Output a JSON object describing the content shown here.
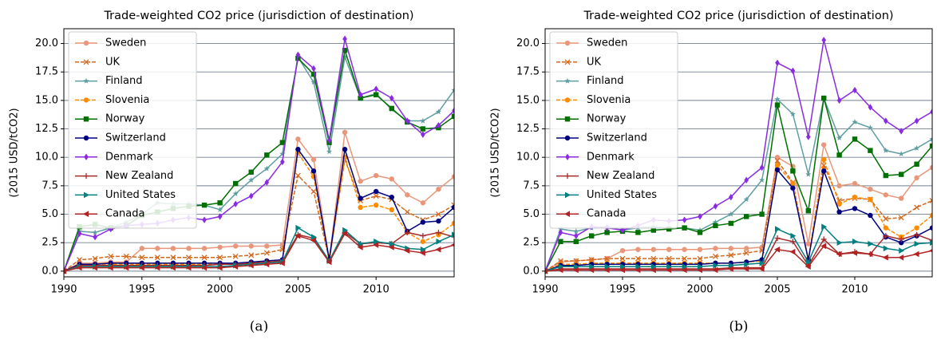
{
  "chart_data": [
    {
      "type": "line",
      "title": "Trade-weighted CO2 price (jurisdiction of destination)",
      "ylabel": "(2015 USD/tCO2)",
      "caption": "(a)",
      "x": [
        1990,
        1991,
        1992,
        1993,
        1994,
        1995,
        1996,
        1997,
        1998,
        1999,
        2000,
        2001,
        2002,
        2003,
        2004,
        2005,
        2006,
        2007,
        2008,
        2009,
        2010,
        2011,
        2012,
        2013,
        2014,
        2015
      ],
      "xlim": [
        1990,
        2015
      ],
      "xticks": [
        1990,
        1995,
        2000,
        2005,
        2010
      ],
      "ylim": [
        -0.5,
        21.3
      ],
      "yticks": [
        {
          "value": 0,
          "label": "0.0"
        },
        {
          "value": 2.5,
          "label": "2.5"
        },
        {
          "value": 5,
          "label": "5.0"
        },
        {
          "value": 7.5,
          "label": "7.5"
        },
        {
          "value": 10,
          "label": "10.0"
        },
        {
          "value": 12.5,
          "label": "12.5"
        },
        {
          "value": 15,
          "label": "15.0"
        },
        {
          "value": 17.5,
          "label": "17.5"
        },
        {
          "value": 20,
          "label": "20.0"
        }
      ],
      "grid": "y",
      "legend": "upper left",
      "series": [
        {
          "name": "Sweden",
          "color": "#e9967a",
          "marker": "o",
          "dashed": false,
          "values": [
            0,
            0.7,
            0.7,
            0.8,
            0.8,
            2.0,
            2.0,
            2.0,
            2.0,
            2.0,
            2.1,
            2.2,
            2.2,
            2.2,
            2.3,
            11.6,
            9.8,
            1.0,
            12.2,
            7.9,
            8.4,
            8.1,
            6.7,
            6.0,
            7.2,
            8.3
          ]
        },
        {
          "name": "UK",
          "color": "#d2691e",
          "marker": "x",
          "dashed": true,
          "values": [
            0,
            1.0,
            1.1,
            1.3,
            1.3,
            1.2,
            1.2,
            1.2,
            1.2,
            1.2,
            1.2,
            1.3,
            1.4,
            1.6,
            1.9,
            8.4,
            7.0,
            1.0,
            9.8,
            6.2,
            6.6,
            6.3,
            5.2,
            4.5,
            5.0,
            5.8
          ]
        },
        {
          "name": "Finland",
          "color": "#5f9ea0",
          "marker": "*",
          "dashed": false,
          "values": [
            0,
            3.5,
            3.4,
            3.8,
            4.3,
            5.0,
            6.0,
            5.9,
            5.9,
            5.8,
            5.4,
            6.8,
            8.0,
            9.0,
            10.3,
            18.8,
            16.6,
            10.5,
            18.8,
            15.2,
            15.6,
            14.2,
            13.2,
            13.2,
            14.0,
            15.9
          ]
        },
        {
          "name": "Slovenia",
          "color": "#ff8c00",
          "marker": "o",
          "dashed": true,
          "values": [
            0,
            0.5,
            0.5,
            0.6,
            0.6,
            0.6,
            0.6,
            0.6,
            0.6,
            0.6,
            0.6,
            0.6,
            0.7,
            0.8,
            0.9,
            10.4,
            8.3,
            0.9,
            10.0,
            5.6,
            5.8,
            5.4,
            3.4,
            2.6,
            3.2,
            4.2
          ]
        },
        {
          "name": "Norway",
          "color": "#007000",
          "marker": "s",
          "dashed": false,
          "values": [
            0,
            3.9,
            4.1,
            3.8,
            4.0,
            4.9,
            5.2,
            5.5,
            5.7,
            5.8,
            6.0,
            7.7,
            8.7,
            10.2,
            11.3,
            18.7,
            17.3,
            11.3,
            19.4,
            15.2,
            15.5,
            14.3,
            13.1,
            12.5,
            12.6,
            13.6
          ]
        },
        {
          "name": "Switzerland",
          "color": "#000080",
          "marker": "o",
          "dashed": false,
          "values": [
            0,
            0.6,
            0.6,
            0.7,
            0.7,
            0.7,
            0.7,
            0.7,
            0.7,
            0.7,
            0.7,
            0.7,
            0.8,
            0.9,
            1.0,
            10.7,
            8.8,
            1.0,
            10.7,
            6.4,
            7.0,
            6.5,
            3.5,
            4.3,
            4.4,
            5.6
          ]
        },
        {
          "name": "Denmark",
          "color": "#8a2be2",
          "marker": "d",
          "dashed": false,
          "values": [
            0,
            3.3,
            3.0,
            3.7,
            4.0,
            4.1,
            4.2,
            4.5,
            4.7,
            4.5,
            4.8,
            5.9,
            6.6,
            7.8,
            9.6,
            19.0,
            17.8,
            11.5,
            20.4,
            15.5,
            16.0,
            15.2,
            13.2,
            12.0,
            12.8,
            14.1
          ]
        },
        {
          "name": "New Zealand",
          "color": "#a52a2a",
          "marker": "+",
          "dashed": false,
          "values": [
            0,
            0.5,
            0.5,
            0.5,
            0.5,
            0.5,
            0.5,
            0.5,
            0.5,
            0.5,
            0.6,
            0.6,
            0.7,
            0.8,
            0.9,
            3.2,
            2.9,
            0.9,
            3.4,
            2.4,
            2.5,
            2.4,
            3.4,
            3.1,
            3.4,
            3.0
          ]
        },
        {
          "name": "United States",
          "color": "#008080",
          "marker": ">",
          "dashed": false,
          "values": [
            0,
            0.4,
            0.4,
            0.4,
            0.4,
            0.4,
            0.4,
            0.4,
            0.4,
            0.4,
            0.4,
            0.5,
            0.6,
            0.7,
            0.8,
            3.8,
            3.0,
            0.9,
            3.6,
            2.4,
            2.6,
            2.4,
            2.0,
            1.9,
            2.6,
            3.2
          ]
        },
        {
          "name": "Canada",
          "color": "#b22222",
          "marker": "<",
          "dashed": false,
          "values": [
            0,
            0.3,
            0.3,
            0.3,
            0.3,
            0.3,
            0.3,
            0.3,
            0.3,
            0.3,
            0.3,
            0.4,
            0.5,
            0.6,
            0.7,
            3.1,
            2.7,
            0.8,
            3.3,
            2.1,
            2.3,
            2.1,
            1.8,
            1.6,
            1.9,
            2.3
          ]
        }
      ]
    },
    {
      "type": "line",
      "title": "Trade-weighted CO2 price (jurisdiction of destination)",
      "ylabel": "(2015 USD/tCO2)",
      "caption": "(b)",
      "x": [
        1990,
        1991,
        1992,
        1993,
        1994,
        1995,
        1996,
        1997,
        1998,
        1999,
        2000,
        2001,
        2002,
        2003,
        2004,
        2005,
        2006,
        2007,
        2008,
        2009,
        2010,
        2011,
        2012,
        2013,
        2014,
        2015
      ],
      "xlim": [
        1990,
        2015
      ],
      "xticks": [
        1990,
        1995,
        2000,
        2005,
        2010
      ],
      "ylim": [
        -0.5,
        21.3
      ],
      "yticks": [
        {
          "value": 0,
          "label": "0.0"
        },
        {
          "value": 2.5,
          "label": "2.5"
        },
        {
          "value": 5,
          "label": "5.0"
        },
        {
          "value": 7.5,
          "label": "7.5"
        },
        {
          "value": 10,
          "label": "10.0"
        },
        {
          "value": 12.5,
          "label": "12.5"
        },
        {
          "value": 15,
          "label": "15.0"
        },
        {
          "value": 17.5,
          "label": "17.5"
        },
        {
          "value": 20,
          "label": "20.0"
        }
      ],
      "grid": "y",
      "legend": "upper left",
      "series": [
        {
          "name": "Sweden",
          "color": "#e9967a",
          "marker": "o",
          "dashed": false,
          "values": [
            0,
            0.8,
            0.9,
            1.0,
            1.1,
            1.8,
            1.9,
            1.9,
            1.9,
            1.9,
            1.9,
            2.0,
            2.0,
            2.0,
            2.1,
            10.0,
            9.2,
            2.4,
            11.1,
            7.5,
            7.7,
            7.2,
            6.7,
            6.4,
            8.2,
            9.1
          ]
        },
        {
          "name": "UK",
          "color": "#d2691e",
          "marker": "x",
          "dashed": true,
          "values": [
            0,
            0.9,
            0.9,
            1.0,
            1.1,
            1.1,
            1.1,
            1.1,
            1.1,
            1.1,
            1.1,
            1.3,
            1.4,
            1.6,
            1.8,
            9.7,
            7.8,
            1.0,
            9.3,
            6.2,
            6.4,
            6.3,
            4.6,
            4.7,
            5.6,
            6.2
          ]
        },
        {
          "name": "Finland",
          "color": "#5f9ea0",
          "marker": "*",
          "dashed": false,
          "values": [
            0,
            3.7,
            3.5,
            3.8,
            3.9,
            3.6,
            3.8,
            3.9,
            3.8,
            3.8,
            3.6,
            4.3,
            5.0,
            6.3,
            8.0,
            15.1,
            13.8,
            8.5,
            15.2,
            11.7,
            13.1,
            12.6,
            10.6,
            10.3,
            10.8,
            11.6
          ]
        },
        {
          "name": "Slovenia",
          "color": "#ff8c00",
          "marker": "o",
          "dashed": true,
          "values": [
            0,
            0.6,
            0.6,
            0.7,
            0.7,
            0.7,
            0.7,
            0.7,
            0.7,
            0.7,
            0.7,
            0.7,
            0.7,
            0.8,
            0.9,
            9.3,
            7.7,
            1.0,
            9.8,
            5.9,
            6.5,
            6.3,
            3.8,
            3.0,
            3.8,
            4.9
          ]
        },
        {
          "name": "Norway",
          "color": "#007000",
          "marker": "s",
          "dashed": false,
          "values": [
            0,
            2.6,
            2.6,
            3.1,
            3.4,
            3.5,
            3.4,
            3.6,
            3.7,
            3.8,
            3.4,
            4.0,
            4.2,
            4.8,
            5.0,
            14.6,
            8.8,
            5.3,
            15.2,
            10.2,
            11.6,
            10.6,
            8.4,
            8.5,
            9.4,
            11.0
          ]
        },
        {
          "name": "Switzerland",
          "color": "#000080",
          "marker": "o",
          "dashed": false,
          "values": [
            0,
            0.5,
            0.5,
            0.6,
            0.6,
            0.6,
            0.6,
            0.6,
            0.6,
            0.6,
            0.6,
            0.7,
            0.7,
            0.8,
            1.0,
            8.9,
            7.3,
            1.0,
            8.8,
            5.2,
            5.5,
            4.9,
            3.0,
            2.5,
            3.1,
            3.8
          ]
        },
        {
          "name": "Denmark",
          "color": "#8a2be2",
          "marker": "d",
          "dashed": false,
          "values": [
            0,
            3.4,
            3.1,
            3.9,
            3.8,
            3.6,
            4.0,
            4.5,
            4.4,
            4.5,
            4.8,
            5.7,
            6.5,
            8.0,
            9.1,
            18.3,
            17.6,
            11.8,
            20.3,
            15.0,
            15.9,
            14.4,
            13.2,
            12.3,
            13.2,
            14.0
          ]
        },
        {
          "name": "New Zealand",
          "color": "#a52a2a",
          "marker": "+",
          "dashed": false,
          "values": [
            0,
            0.2,
            0.2,
            0.2,
            0.2,
            0.2,
            0.2,
            0.2,
            0.2,
            0.2,
            0.2,
            0.2,
            0.3,
            0.3,
            0.3,
            2.9,
            2.6,
            0.5,
            2.8,
            1.5,
            1.7,
            1.5,
            3.1,
            2.8,
            3.2,
            2.7
          ]
        },
        {
          "name": "United States",
          "color": "#008080",
          "marker": ">",
          "dashed": false,
          "values": [
            0,
            0.4,
            0.4,
            0.4,
            0.4,
            0.4,
            0.4,
            0.4,
            0.4,
            0.4,
            0.4,
            0.5,
            0.5,
            0.6,
            0.7,
            3.7,
            3.1,
            0.8,
            3.9,
            2.5,
            2.6,
            2.4,
            2.0,
            1.8,
            2.4,
            2.5
          ]
        },
        {
          "name": "Canada",
          "color": "#b22222",
          "marker": "<",
          "dashed": false,
          "values": [
            0,
            0.1,
            0.1,
            0.1,
            0.1,
            0.1,
            0.1,
            0.1,
            0.1,
            0.1,
            0.1,
            0.1,
            0.2,
            0.2,
            0.2,
            1.9,
            1.7,
            0.4,
            2.2,
            1.5,
            1.6,
            1.5,
            1.2,
            1.2,
            1.5,
            1.8
          ]
        }
      ]
    }
  ]
}
